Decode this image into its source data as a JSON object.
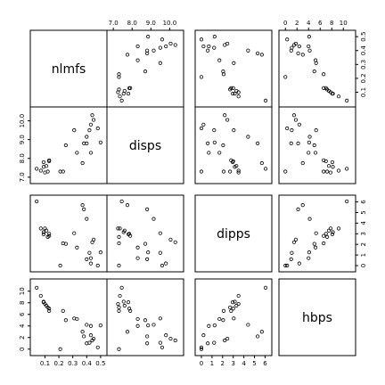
{
  "chart_data": {
    "type": "scatter",
    "variables": [
      "nlmfs",
      "disps",
      "dipps",
      "hbps"
    ],
    "axes": {
      "nlmfs": {
        "range": [
          0.02,
          0.52
        ],
        "ticks": [
          "0.1",
          "0.2",
          "0.3",
          "0.4",
          "0.5"
        ],
        "tick_values": [
          0.1,
          0.2,
          0.3,
          0.4,
          0.5
        ]
      },
      "disps": {
        "range": [
          6.85,
          10.55
        ],
        "ticks": [
          "7.0",
          "8.0",
          "9.0",
          "10.0"
        ],
        "tick_values": [
          7.0,
          8.0,
          9.0,
          10.0
        ]
      },
      "dipps": {
        "range": [
          -0.25,
          6.3
        ],
        "ticks": [
          "0",
          "1",
          "2",
          "3",
          "4",
          "5",
          "6"
        ],
        "tick_values": [
          0,
          1,
          2,
          3,
          4,
          5,
          6
        ]
      },
      "hbps": {
        "range": [
          -0.5,
          11.5
        ],
        "ticks": [
          "0",
          "2",
          "4",
          "6",
          "8",
          "10"
        ],
        "tick_values": [
          0,
          2,
          4,
          6,
          8,
          10
        ]
      }
    },
    "observations": [
      {
        "nlmfs": 0.04,
        "disps": 7.45,
        "dipps": 6.05,
        "hbps": 10.6
      },
      {
        "nlmfs": 0.07,
        "disps": 7.35,
        "dipps": 3.5,
        "hbps": 9.2
      },
      {
        "nlmfs": 0.09,
        "disps": 7.55,
        "dipps": 3.15,
        "hbps": 8.2
      },
      {
        "nlmfs": 0.09,
        "disps": 7.8,
        "dipps": 2.95,
        "hbps": 8.1
      },
      {
        "nlmfs": 0.1,
        "disps": 7.25,
        "dipps": 3.5,
        "hbps": 7.8
      },
      {
        "nlmfs": 0.11,
        "disps": 7.6,
        "dipps": 3.3,
        "hbps": 7.5
      },
      {
        "nlmfs": 0.12,
        "disps": 7.3,
        "dipps": 2.7,
        "hbps": 7.2
      },
      {
        "nlmfs": 0.13,
        "disps": 7.85,
        "dipps": 3.0,
        "hbps": 7.0
      },
      {
        "nlmfs": 0.13,
        "disps": 7.9,
        "dipps": 2.8,
        "hbps": 6.6
      },
      {
        "nlmfs": 0.21,
        "disps": 7.3,
        "dipps": 0.0,
        "hbps": 0.0
      },
      {
        "nlmfs": 0.23,
        "disps": 7.3,
        "dipps": 2.1,
        "hbps": 6.6
      },
      {
        "nlmfs": 0.25,
        "disps": 8.7,
        "dipps": 2.05,
        "hbps": 5.0
      },
      {
        "nlmfs": 0.31,
        "disps": 9.5,
        "dipps": 3.05,
        "hbps": 5.3
      },
      {
        "nlmfs": 0.33,
        "disps": 8.3,
        "dipps": 1.7,
        "hbps": 5.2
      },
      {
        "nlmfs": 0.37,
        "disps": 7.75,
        "dipps": 5.7,
        "hbps": 3.0
      },
      {
        "nlmfs": 0.38,
        "disps": 8.8,
        "dipps": 5.3,
        "hbps": 2.2
      },
      {
        "nlmfs": 0.4,
        "disps": 9.15,
        "dipps": 4.4,
        "hbps": 4.2
      },
      {
        "nlmfs": 0.4,
        "disps": 8.8,
        "dipps": 0.6,
        "hbps": 1.0
      },
      {
        "nlmfs": 0.42,
        "disps": 9.5,
        "dipps": 1.2,
        "hbps": 1.1
      },
      {
        "nlmfs": 0.43,
        "disps": 9.8,
        "dipps": 0.2,
        "hbps": 2.4
      },
      {
        "nlmfs": 0.43,
        "disps": 8.3,
        "dipps": 0.7,
        "hbps": 4.0
      },
      {
        "nlmfs": 0.44,
        "disps": 10.3,
        "dipps": 2.2,
        "hbps": 1.5
      },
      {
        "nlmfs": 0.45,
        "disps": 10.05,
        "dipps": 2.45,
        "hbps": 1.8
      },
      {
        "nlmfs": 0.48,
        "disps": 9.6,
        "dipps": 0.0,
        "hbps": 0.3
      },
      {
        "nlmfs": 0.5,
        "disps": 8.85,
        "dipps": 1.25,
        "hbps": 4.1
      }
    ],
    "legend": "none",
    "grid": false
  }
}
